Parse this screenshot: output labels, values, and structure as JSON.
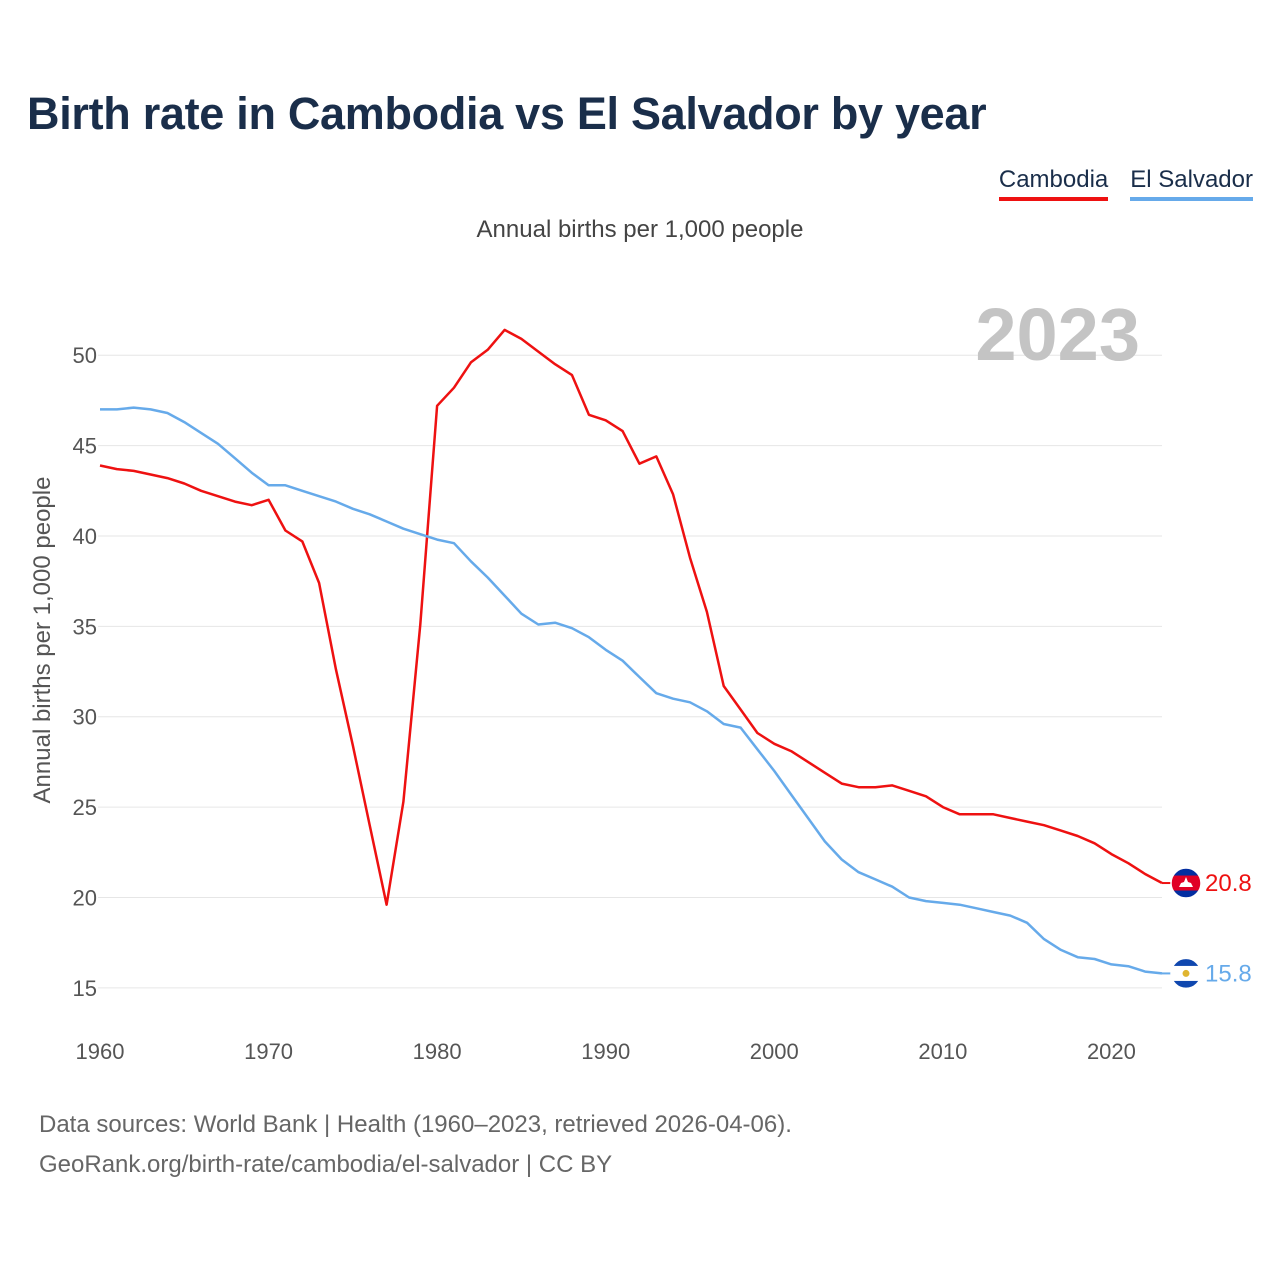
{
  "title": "Birth rate in Cambodia vs El Salvador by year",
  "legend": [
    {
      "name": "Cambodia",
      "color": "#ee1111"
    },
    {
      "name": "El Salvador",
      "color": "#66aaea"
    }
  ],
  "footer": {
    "line1": "Data sources: World Bank | Health (1960–2023, retrieved 2026-04-06).",
    "line2": "GeoRank.org/birth-rate/cambodia/el-salvador | CC BY"
  },
  "chart_data": {
    "type": "line",
    "title": "Birth rate in Cambodia vs El Salvador by year",
    "subtitle": "Annual births per 1,000 people",
    "xlabel": "",
    "ylabel": "Annual births per 1,000 people",
    "xlim": [
      1960,
      2023
    ],
    "ylim": [
      13.5,
      52.5
    ],
    "xticks": [
      1960,
      1970,
      1980,
      1990,
      2000,
      2010,
      2020
    ],
    "yticks": [
      15,
      20,
      25,
      30,
      35,
      40,
      45,
      50
    ],
    "year_label": "2023",
    "grid": true,
    "x": [
      1960,
      1961,
      1962,
      1963,
      1964,
      1965,
      1966,
      1967,
      1968,
      1969,
      1970,
      1971,
      1972,
      1973,
      1974,
      1975,
      1976,
      1977,
      1978,
      1979,
      1980,
      1981,
      1982,
      1983,
      1984,
      1985,
      1986,
      1987,
      1988,
      1989,
      1990,
      1991,
      1992,
      1993,
      1994,
      1995,
      1996,
      1997,
      1998,
      1999,
      2000,
      2001,
      2002,
      2003,
      2004,
      2005,
      2006,
      2007,
      2008,
      2009,
      2010,
      2011,
      2012,
      2013,
      2014,
      2015,
      2016,
      2017,
      2018,
      2019,
      2020,
      2021,
      2022,
      2023
    ],
    "series": [
      {
        "name": "Cambodia",
        "color": "#ee1111",
        "end_label": "20.8",
        "values": [
          43.9,
          43.7,
          43.6,
          43.4,
          43.2,
          42.9,
          42.5,
          42.2,
          41.9,
          41.7,
          42.0,
          40.3,
          39.7,
          37.4,
          32.6,
          28.4,
          24.0,
          19.6,
          25.3,
          35.1,
          47.2,
          48.2,
          49.6,
          50.3,
          51.4,
          50.9,
          50.2,
          49.5,
          48.9,
          46.7,
          46.4,
          45.8,
          44.0,
          44.4,
          42.3,
          38.8,
          35.8,
          31.7,
          30.4,
          29.1,
          28.5,
          28.1,
          27.5,
          26.9,
          26.3,
          26.1,
          26.1,
          26.2,
          25.9,
          25.6,
          25.0,
          24.6,
          24.6,
          24.6,
          24.4,
          24.2,
          24.0,
          23.7,
          23.4,
          23.0,
          22.4,
          21.9,
          21.3,
          20.8
        ]
      },
      {
        "name": "El Salvador",
        "color": "#66aaea",
        "end_label": "15.8",
        "values": [
          47.0,
          47.0,
          47.1,
          47.0,
          46.8,
          46.3,
          45.7,
          45.1,
          44.3,
          43.5,
          42.8,
          42.8,
          42.5,
          42.2,
          41.9,
          41.5,
          41.2,
          40.8,
          40.4,
          40.1,
          39.8,
          39.6,
          38.6,
          37.7,
          36.7,
          35.7,
          35.1,
          35.2,
          34.9,
          34.4,
          33.7,
          33.1,
          32.2,
          31.3,
          31.0,
          30.8,
          30.3,
          29.6,
          29.4,
          28.2,
          27.0,
          25.7,
          24.4,
          23.1,
          22.1,
          21.4,
          21.0,
          20.6,
          20.0,
          19.8,
          19.7,
          19.6,
          19.4,
          19.2,
          19.0,
          18.6,
          17.7,
          17.1,
          16.7,
          16.6,
          16.3,
          16.2,
          15.9,
          15.8
        ]
      }
    ]
  }
}
